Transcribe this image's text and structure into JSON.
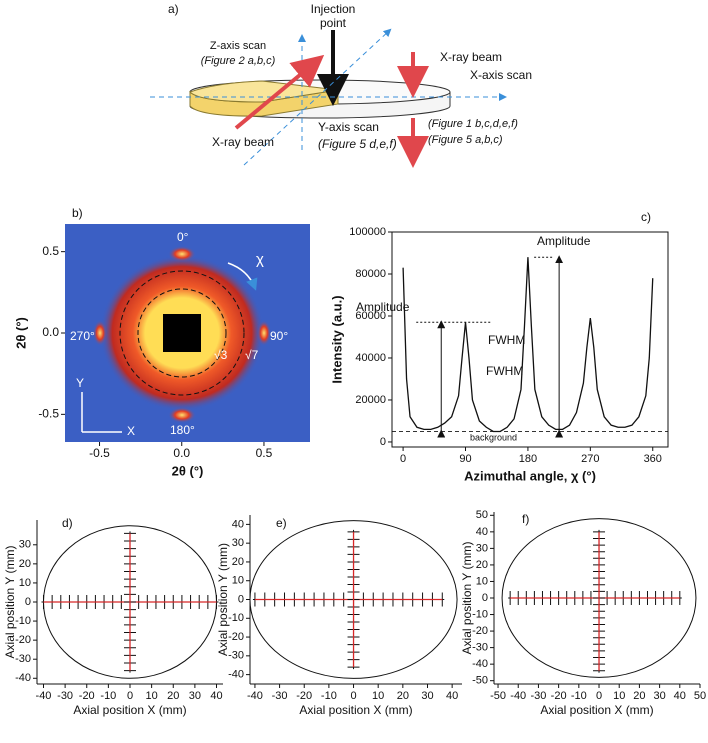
{
  "diagram": {
    "label": "a)",
    "injection": [
      "Injection",
      "point"
    ],
    "z_scan": "Z-axis scan",
    "z_ref": "(Figure 2 a,b,c)",
    "beam_top": "X-ray beam",
    "x_scan": "X-axis scan",
    "beam_bottom": "X-ray beam",
    "y_scan": "Y-axis scan",
    "y_ref": "(Figure 5 d,e,f)",
    "x_ref": [
      "(Figure 1 b,c,d,e,f)",
      "(Figure 5 a,b,c)"
    ]
  },
  "chart_data": [
    {
      "type": "image",
      "label": "b)",
      "xlabel": "2θ (°)",
      "ylabel": "2θ (°)",
      "xlim": [
        -0.71,
        0.78
      ],
      "ylim": [
        -0.67,
        0.67
      ],
      "xticks": [
        -0.5,
        {
          "value": 0,
          "label": "0.0"
        },
        0.5
      ],
      "yticks": [
        -0.5,
        {
          "value": 0,
          "label": "0.0"
        },
        0.5
      ],
      "annotations": [
        "0°",
        "90°",
        "180°",
        "270°",
        "χ",
        "√3",
        "√7",
        "Y",
        "X"
      ]
    },
    {
      "type": "line",
      "label": "c)",
      "xlabel": "Azimuthal angle, χ (°)",
      "ylabel": "Intensity (a.u.)",
      "color": "#111",
      "xlim": [
        -16,
        382
      ],
      "ylim": [
        -2400,
        100000
      ],
      "xticks": [
        0,
        90,
        180,
        270,
        360
      ],
      "yticks": [
        0,
        20000,
        40000,
        60000,
        80000,
        100000
      ],
      "hlines": [
        5000
      ],
      "x": [
        0,
        5,
        10,
        20,
        30,
        40,
        50,
        60,
        70,
        80,
        85,
        90,
        95,
        100,
        110,
        120,
        130,
        140,
        150,
        160,
        170,
        175,
        180,
        185,
        190,
        200,
        210,
        220,
        230,
        240,
        250,
        260,
        265,
        270,
        275,
        280,
        290,
        300,
        310,
        320,
        330,
        340,
        350,
        355,
        360
      ],
      "values": [
        83000,
        30000,
        12000,
        7000,
        6000,
        6000,
        7000,
        9000,
        12000,
        22000,
        40000,
        57000,
        40000,
        20000,
        10000,
        7000,
        5000,
        5000,
        7000,
        11000,
        25000,
        55000,
        88000,
        55000,
        25000,
        12000,
        8000,
        6000,
        6000,
        8000,
        14000,
        28000,
        45000,
        59000,
        45000,
        25000,
        12000,
        8000,
        7000,
        7000,
        8000,
        12000,
        22000,
        40000,
        78000
      ],
      "annotations": [
        "Amplitude",
        "Amplitude",
        "FWHM",
        "FWHM",
        "background"
      ]
    },
    {
      "type": "scatter",
      "label": "d)",
      "xlabel": "Axial position X (mm)",
      "ylabel": "Axial position Y (mm)",
      "fit_color": "#d62728",
      "circle_radius": 40,
      "xlim": [
        -43,
        43
      ],
      "ylim": [
        -43,
        43
      ],
      "xticks": [
        -40,
        -30,
        -20,
        -10,
        0,
        10,
        20,
        30,
        40
      ],
      "yticks": [
        -40,
        -30,
        -20,
        -10,
        0,
        10,
        20,
        30
      ],
      "series": [
        {
          "color": "#111",
          "x": [
            -40,
            -36,
            -32,
            -28,
            -24,
            -20,
            -16,
            -12,
            -8,
            -4,
            0,
            4,
            8,
            12,
            16,
            20,
            24,
            28,
            32,
            36,
            40
          ],
          "values": [
            0,
            0,
            0,
            0,
            0,
            0,
            0,
            0,
            0,
            0,
            0,
            0,
            0,
            0,
            0,
            0,
            0,
            0,
            0,
            0,
            0
          ]
        },
        {
          "color": "#111",
          "x": [
            0,
            0,
            0,
            0,
            0,
            0,
            0,
            0,
            0,
            0,
            0,
            0,
            0,
            0,
            0,
            0,
            0,
            0,
            0
          ],
          "values": [
            -36,
            -32,
            -28,
            -24,
            -20,
            -16,
            -12,
            -8,
            -4,
            0,
            4,
            8,
            12,
            16,
            20,
            24,
            28,
            32,
            36
          ]
        }
      ]
    },
    {
      "type": "scatter",
      "label": "e)",
      "xlabel": "Axial position X (mm)",
      "ylabel": "Axial position Y (mm)",
      "fit_color": "#d62728",
      "circle_radius": 42,
      "xlim": [
        -42,
        44
      ],
      "ylim": [
        -45,
        45
      ],
      "xticks": [
        -40,
        -30,
        -20,
        -10,
        0,
        10,
        20,
        30,
        40
      ],
      "yticks": [
        -40,
        -30,
        -20,
        -10,
        0,
        10,
        20,
        30,
        40
      ],
      "series": [
        {
          "color": "#111",
          "x": [
            -40,
            -36,
            -32,
            -28,
            -24,
            -20,
            -16,
            -12,
            -8,
            -4,
            0,
            4,
            8,
            12,
            16,
            20,
            24,
            28,
            32,
            36
          ],
          "values": [
            0,
            0,
            0,
            0,
            0,
            0,
            0,
            0,
            0,
            0,
            0,
            0,
            0,
            0,
            0,
            0,
            0,
            0,
            0,
            0
          ]
        },
        {
          "color": "#111",
          "x": [
            0,
            0,
            0,
            0,
            0,
            0,
            0,
            0,
            0,
            0,
            0,
            0,
            0,
            0,
            0,
            0,
            0,
            0,
            0
          ],
          "values": [
            -36,
            -32,
            -28,
            -24,
            -20,
            -16,
            -12,
            -8,
            -4,
            0,
            4,
            8,
            12,
            16,
            20,
            24,
            28,
            32,
            36
          ]
        }
      ]
    },
    {
      "type": "scatter",
      "label": "f)",
      "xlabel": "Axial position X (mm)",
      "ylabel": "Axial position Y (mm)",
      "fit_color": "#d62728",
      "circle_radius": 48,
      "xlim": [
        -52,
        50
      ],
      "ylim": [
        -52,
        52
      ],
      "xticks": [
        -50,
        -40,
        -30,
        -20,
        -10,
        0,
        10,
        20,
        30,
        40,
        50
      ],
      "yticks": [
        -50,
        -40,
        -30,
        -20,
        -10,
        0,
        10,
        20,
        30,
        40,
        50
      ],
      "series": [
        {
          "color": "#111",
          "x": [
            -44,
            -40,
            -36,
            -32,
            -28,
            -24,
            -20,
            -16,
            -12,
            -8,
            -4,
            0,
            4,
            8,
            12,
            16,
            20,
            24,
            28,
            32,
            36,
            40
          ],
          "values": [
            0,
            0,
            0,
            0,
            0,
            0,
            0,
            0,
            0,
            0,
            0,
            0,
            0,
            0,
            0,
            0,
            0,
            0,
            0,
            0,
            0,
            0
          ]
        },
        {
          "color": "#111",
          "x": [
            0,
            0,
            0,
            0,
            0,
            0,
            0,
            0,
            0,
            0,
            0,
            0,
            0,
            0,
            0,
            0,
            0,
            0,
            0,
            0,
            0,
            0
          ],
          "values": [
            -44,
            -40,
            -36,
            -32,
            -28,
            -24,
            -20,
            -16,
            -12,
            -8,
            -4,
            0,
            4,
            8,
            12,
            16,
            20,
            24,
            28,
            32,
            36,
            40
          ]
        }
      ]
    }
  ]
}
